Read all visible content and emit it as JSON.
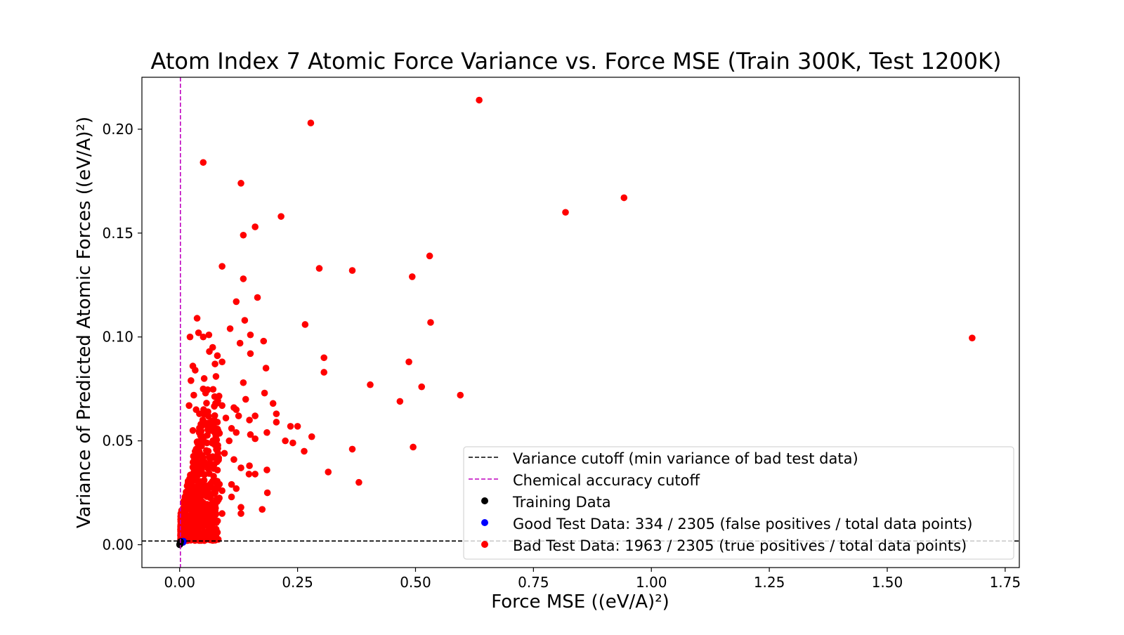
{
  "chart_data": {
    "type": "scatter",
    "title": "Atom Index 7 Atomic Force Variance vs. Force MSE (Train 300K, Test 1200K)",
    "xlabel": "Force MSE ((eV/A)²)",
    "ylabel": "Variance of Predicted Atomic Forces ((eV/A)²)",
    "xlim": [
      -0.08,
      1.78
    ],
    "ylim": [
      -0.011,
      0.225
    ],
    "xticks": [
      0.0,
      0.25,
      0.5,
      0.75,
      1.0,
      1.25,
      1.5,
      1.75
    ],
    "xtick_labels": [
      "0.00",
      "0.25",
      "0.50",
      "0.75",
      "1.00",
      "1.25",
      "1.50",
      "1.75"
    ],
    "yticks": [
      0.0,
      0.05,
      0.1,
      0.15,
      0.2
    ],
    "ytick_labels": [
      "0.00",
      "0.05",
      "0.10",
      "0.15",
      "0.20"
    ],
    "grid": false,
    "legend_position": "lower-right",
    "lines": [
      {
        "name": "Variance cutoff (min variance of bad test data)",
        "orientation": "horizontal",
        "value": 0.0018,
        "color": "#000000",
        "style": "dashed"
      },
      {
        "name": "Chemical accuracy cutoff",
        "orientation": "vertical",
        "value": 0.0016,
        "color": "#bf00bf",
        "style": "dashed"
      }
    ],
    "series": [
      {
        "name": "Training Data",
        "color": "#000000",
        "points": [
          [
            0.0,
            0.0
          ],
          [
            0.0005,
            0.0004
          ],
          [
            0.001,
            0.0008
          ],
          [
            0.0015,
            0.0012
          ],
          [
            0.0008,
            0.0002
          ],
          [
            0.0012,
            0.0006
          ],
          [
            0.0003,
            0.0001
          ],
          [
            0.002,
            0.0015
          ]
        ]
      },
      {
        "name": "Good Test Data: 334 / 2305 (false positives / total data points)",
        "color": "#0000ff",
        "points": [
          [
            0.002,
            0.001
          ],
          [
            0.003,
            0.0015
          ],
          [
            0.004,
            0.0012
          ],
          [
            0.005,
            0.0016
          ],
          [
            0.006,
            0.0014
          ],
          [
            0.008,
            0.0017
          ],
          [
            0.003,
            0.0008
          ],
          [
            0.007,
            0.0011
          ]
        ]
      },
      {
        "name": "Bad Test Data: 1963 / 2305 (true positives / total data points)",
        "color": "#ff0000",
        "points": [
          [
            0.635,
            0.214
          ],
          [
            0.278,
            0.203
          ],
          [
            0.05,
            0.184
          ],
          [
            0.13,
            0.174
          ],
          [
            0.215,
            0.158
          ],
          [
            0.16,
            0.153
          ],
          [
            0.135,
            0.149
          ],
          [
            0.942,
            0.167
          ],
          [
            0.818,
            0.16
          ],
          [
            0.53,
            0.139
          ],
          [
            0.09,
            0.134
          ],
          [
            0.296,
            0.133
          ],
          [
            0.366,
            0.132
          ],
          [
            0.493,
            0.129
          ],
          [
            0.135,
            0.128
          ],
          [
            0.165,
            0.119
          ],
          [
            0.12,
            0.117
          ],
          [
            0.138,
            0.108
          ],
          [
            0.532,
            0.107
          ],
          [
            0.266,
            0.106
          ],
          [
            0.037,
            0.109
          ],
          [
            0.107,
            0.104
          ],
          [
            0.04,
            0.102
          ],
          [
            0.05,
            0.1
          ],
          [
            0.062,
            0.101
          ],
          [
            0.15,
            0.101
          ],
          [
            0.022,
            0.1
          ],
          [
            1.68,
            0.0995
          ],
          [
            0.178,
            0.098
          ],
          [
            0.128,
            0.097
          ],
          [
            0.07,
            0.095
          ],
          [
            0.063,
            0.093
          ],
          [
            0.08,
            0.091
          ],
          [
            0.15,
            0.092
          ],
          [
            0.306,
            0.09
          ],
          [
            0.075,
            0.087
          ],
          [
            0.09,
            0.088
          ],
          [
            0.486,
            0.088
          ],
          [
            0.028,
            0.086
          ],
          [
            0.183,
            0.085
          ],
          [
            0.033,
            0.084
          ],
          [
            0.306,
            0.083
          ],
          [
            0.077,
            0.081
          ],
          [
            0.052,
            0.08
          ],
          [
            0.024,
            0.079
          ],
          [
            0.135,
            0.078
          ],
          [
            0.404,
            0.077
          ],
          [
            0.513,
            0.076
          ],
          [
            0.05,
            0.075
          ],
          [
            0.055,
            0.073
          ],
          [
            0.18,
            0.073
          ],
          [
            0.03,
            0.072
          ],
          [
            0.595,
            0.072
          ],
          [
            0.14,
            0.07
          ],
          [
            0.198,
            0.068
          ],
          [
            0.467,
            0.069
          ],
          [
            0.078,
            0.068
          ],
          [
            0.02,
            0.067
          ],
          [
            0.09,
            0.067
          ],
          [
            0.115,
            0.066
          ],
          [
            0.12,
            0.065
          ],
          [
            0.035,
            0.065
          ],
          [
            0.06,
            0.064
          ],
          [
            0.205,
            0.063
          ],
          [
            0.042,
            0.063
          ],
          [
            0.125,
            0.062
          ],
          [
            0.16,
            0.062
          ],
          [
            0.098,
            0.061
          ],
          [
            0.148,
            0.06
          ],
          [
            0.08,
            0.059
          ],
          [
            0.205,
            0.059
          ],
          [
            0.045,
            0.058
          ],
          [
            0.235,
            0.057
          ],
          [
            0.25,
            0.057
          ],
          [
            0.11,
            0.056
          ],
          [
            0.028,
            0.055
          ],
          [
            0.066,
            0.055
          ],
          [
            0.12,
            0.054
          ],
          [
            0.185,
            0.054
          ],
          [
            0.15,
            0.053
          ],
          [
            0.28,
            0.052
          ],
          [
            0.16,
            0.051
          ],
          [
            0.105,
            0.05
          ],
          [
            0.224,
            0.05
          ],
          [
            0.24,
            0.049
          ],
          [
            0.058,
            0.049
          ],
          [
            0.075,
            0.048
          ],
          [
            0.495,
            0.047
          ],
          [
            0.366,
            0.046
          ],
          [
            0.264,
            0.045
          ],
          [
            0.035,
            0.046
          ],
          [
            0.095,
            0.044
          ],
          [
            0.045,
            0.043
          ],
          [
            0.115,
            0.041
          ],
          [
            0.03,
            0.04
          ],
          [
            0.148,
            0.038
          ],
          [
            0.13,
            0.037
          ],
          [
            0.185,
            0.036
          ],
          [
            0.315,
            0.035
          ],
          [
            0.147,
            0.034
          ],
          [
            0.16,
            0.034
          ],
          [
            0.072,
            0.033
          ],
          [
            0.025,
            0.032
          ],
          [
            0.052,
            0.031
          ],
          [
            0.38,
            0.03
          ],
          [
            0.11,
            0.029
          ],
          [
            0.04,
            0.029
          ],
          [
            0.08,
            0.028
          ],
          [
            0.12,
            0.027
          ],
          [
            0.09,
            0.026
          ],
          [
            0.186,
            0.025
          ],
          [
            0.06,
            0.024
          ],
          [
            0.11,
            0.023
          ],
          [
            0.03,
            0.022
          ],
          [
            0.045,
            0.021
          ],
          [
            0.075,
            0.02
          ],
          [
            0.025,
            0.019
          ],
          [
            0.13,
            0.018
          ],
          [
            0.175,
            0.017
          ],
          [
            0.09,
            0.015
          ],
          [
            0.13,
            0.015
          ],
          [
            0.06,
            0.013
          ],
          [
            0.02,
            0.012
          ],
          [
            0.04,
            0.011
          ],
          [
            0.05,
            0.01
          ],
          [
            0.03,
            0.009
          ],
          [
            0.015,
            0.008
          ],
          [
            0.035,
            0.007
          ],
          [
            0.01,
            0.006
          ],
          [
            0.02,
            0.005
          ],
          [
            0.008,
            0.004
          ],
          [
            0.012,
            0.003
          ],
          [
            0.006,
            0.002
          ]
        ]
      }
    ],
    "dense_cluster": {
      "series_index": 2,
      "count": 600,
      "x_range": [
        0.002,
        0.085
      ],
      "y_range": [
        0.002,
        0.075
      ]
    }
  }
}
